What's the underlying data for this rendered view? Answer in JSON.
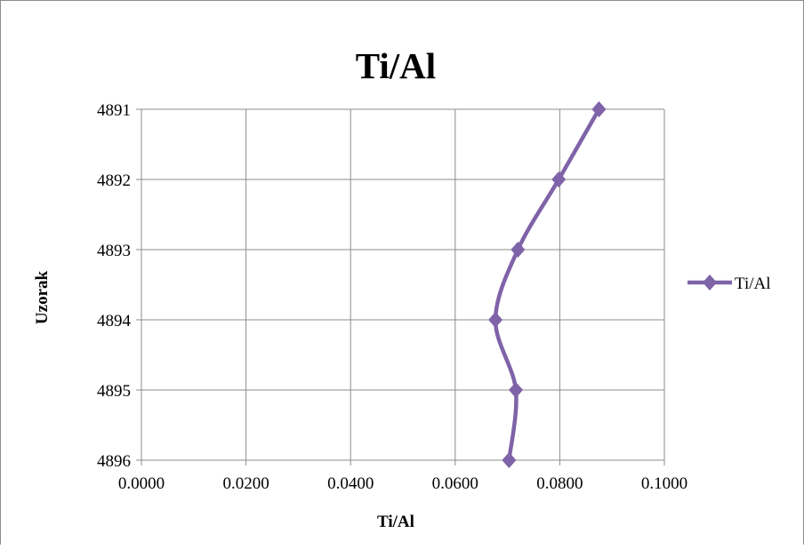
{
  "chart_data": {
    "type": "line",
    "title": "Ti/Al",
    "xlabel": "Ti/Al",
    "ylabel": "Uzorak",
    "xlim": [
      0,
      0.1
    ],
    "x_ticks": [
      "0.0000",
      "0.0200",
      "0.0400",
      "0.0600",
      "0.0800",
      "0.1000"
    ],
    "y_ticks": [
      "4891",
      "4892",
      "4893",
      "4894",
      "4895",
      "4896"
    ],
    "y_reversed": true,
    "grid": true,
    "legend_position": "right",
    "series": [
      {
        "name": "Ti/Al",
        "color": "#7f63a8",
        "marker": "diamond",
        "points": [
          {
            "sample": "4891",
            "value": 0.0875
          },
          {
            "sample": "4892",
            "value": 0.0798
          },
          {
            "sample": "4893",
            "value": 0.072
          },
          {
            "sample": "4894",
            "value": 0.0677
          },
          {
            "sample": "4895",
            "value": 0.0716
          },
          {
            "sample": "4896",
            "value": 0.0703
          }
        ]
      }
    ]
  }
}
